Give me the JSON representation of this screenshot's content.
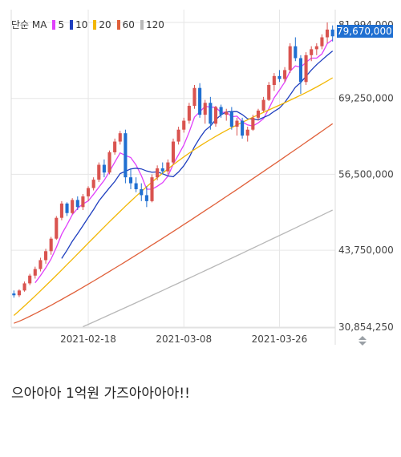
{
  "legend": {
    "label": "단순 MA",
    "items": [
      {
        "name": "5",
        "color": "#e040fb"
      },
      {
        "name": "10",
        "color": "#1f3fbf"
      },
      {
        "name": "20",
        "color": "#f2b705"
      },
      {
        "name": "60",
        "color": "#e0603a"
      },
      {
        "name": "120",
        "color": "#b8b8b8"
      }
    ]
  },
  "price_badge": "79,670,000",
  "caption": "으아아아 1억원 가즈아아아아!!",
  "colors": {
    "up": "#d9534f",
    "down": "#1f6fd1",
    "ma5": "#e040fb",
    "ma10": "#1f3fbf",
    "ma20": "#f2b705",
    "ma60": "#e0603a",
    "ma120": "#b8b8b8",
    "grid": "#e6e6e6"
  },
  "chart_data": {
    "type": "candlestick",
    "y_ticks": [
      {
        "value": 81994000,
        "label": "81,994,000"
      },
      {
        "value": 69250000,
        "label": "69,250,000"
      },
      {
        "value": 56500000,
        "label": "56,500,000"
      },
      {
        "value": 43750000,
        "label": "43,750,000"
      },
      {
        "value": 30854250,
        "label": "30,854,250"
      }
    ],
    "x_ticks": [
      {
        "index": 14,
        "label": "2021-02-18"
      },
      {
        "index": 32,
        "label": "2021-03-08"
      },
      {
        "index": 50,
        "label": "2021-03-26"
      }
    ],
    "ylim": [
      30854250,
      81994000
    ],
    "candles": [
      [
        36.5,
        37.0,
        35.8,
        36.2
      ],
      [
        36.2,
        37.2,
        35.9,
        37.0
      ],
      [
        37.0,
        38.5,
        36.8,
        38.2
      ],
      [
        38.2,
        39.8,
        37.9,
        39.5
      ],
      [
        39.5,
        41.0,
        39.0,
        40.6
      ],
      [
        40.6,
        42.5,
        40.2,
        42.1
      ],
      [
        42.1,
        44.0,
        41.5,
        43.6
      ],
      [
        43.6,
        46.0,
        43.0,
        45.7
      ],
      [
        45.7,
        49.5,
        45.5,
        49.2
      ],
      [
        49.2,
        52.0,
        48.8,
        51.6
      ],
      [
        51.6,
        51.8,
        49.5,
        50.0
      ],
      [
        50.0,
        52.5,
        49.8,
        52.2
      ],
      [
        52.2,
        52.8,
        50.5,
        51.0
      ],
      [
        51.0,
        53.2,
        50.5,
        52.8
      ],
      [
        52.8,
        54.5,
        52.0,
        54.2
      ],
      [
        54.2,
        56.0,
        53.8,
        55.6
      ],
      [
        55.6,
        58.5,
        55.2,
        58.1
      ],
      [
        58.1,
        59.0,
        56.0,
        56.8
      ],
      [
        56.8,
        60.5,
        56.5,
        60.2
      ],
      [
        60.2,
        62.5,
        59.8,
        62.0
      ],
      [
        62.0,
        63.8,
        61.5,
        63.4
      ],
      [
        63.4,
        64.0,
        55.0,
        56.0
      ],
      [
        56.0,
        57.5,
        54.0,
        55.0
      ],
      [
        55.0,
        56.0,
        53.5,
        54.0
      ],
      [
        54.0,
        55.0,
        52.0,
        53.0
      ],
      [
        53.0,
        54.5,
        51.0,
        52.0
      ],
      [
        52.0,
        56.5,
        51.8,
        56.0
      ],
      [
        56.0,
        58.0,
        55.5,
        57.5
      ],
      [
        57.5,
        58.5,
        56.5,
        57.0
      ],
      [
        57.0,
        59.0,
        56.5,
        58.5
      ],
      [
        58.5,
        62.5,
        58.2,
        62.0
      ],
      [
        62.0,
        64.5,
        61.5,
        64.0
      ],
      [
        64.0,
        66.0,
        63.5,
        65.5
      ],
      [
        65.5,
        68.5,
        65.0,
        68.0
      ],
      [
        68.0,
        71.5,
        67.5,
        71.0
      ],
      [
        71.0,
        71.8,
        66.0,
        66.5
      ],
      [
        66.5,
        69.0,
        65.0,
        68.5
      ],
      [
        68.5,
        69.5,
        64.0,
        65.0
      ],
      [
        65.0,
        68.0,
        64.5,
        67.8
      ],
      [
        67.8,
        68.2,
        66.0,
        66.5
      ],
      [
        66.5,
        67.5,
        65.5,
        67.0
      ],
      [
        67.0,
        67.8,
        64.0,
        64.5
      ],
      [
        64.5,
        66.0,
        63.0,
        65.5
      ],
      [
        65.5,
        66.0,
        62.5,
        63.0
      ],
      [
        63.0,
        64.5,
        62.0,
        64.0
      ],
      [
        64.0,
        66.5,
        63.8,
        66.0
      ],
      [
        66.0,
        67.5,
        65.5,
        67.2
      ],
      [
        67.2,
        69.5,
        67.0,
        69.0
      ],
      [
        69.0,
        72.0,
        68.8,
        71.5
      ],
      [
        71.5,
        73.5,
        70.5,
        73.0
      ],
      [
        73.0,
        74.0,
        72.0,
        72.5
      ],
      [
        72.5,
        74.5,
        72.0,
        74.0
      ],
      [
        74.0,
        78.5,
        73.5,
        78.0
      ],
      [
        78.0,
        79.5,
        75.5,
        76.0
      ],
      [
        76.0,
        76.5,
        70.0,
        72.0
      ],
      [
        72.0,
        77.0,
        71.5,
        76.5
      ],
      [
        76.5,
        78.0,
        75.5,
        77.5
      ],
      [
        77.5,
        78.5,
        76.5,
        78.0
      ],
      [
        78.0,
        80.0,
        77.5,
        79.5
      ],
      [
        79.5,
        82.0,
        78.5,
        80.8
      ],
      [
        80.8,
        81.5,
        78.8,
        79.67
      ]
    ]
  }
}
